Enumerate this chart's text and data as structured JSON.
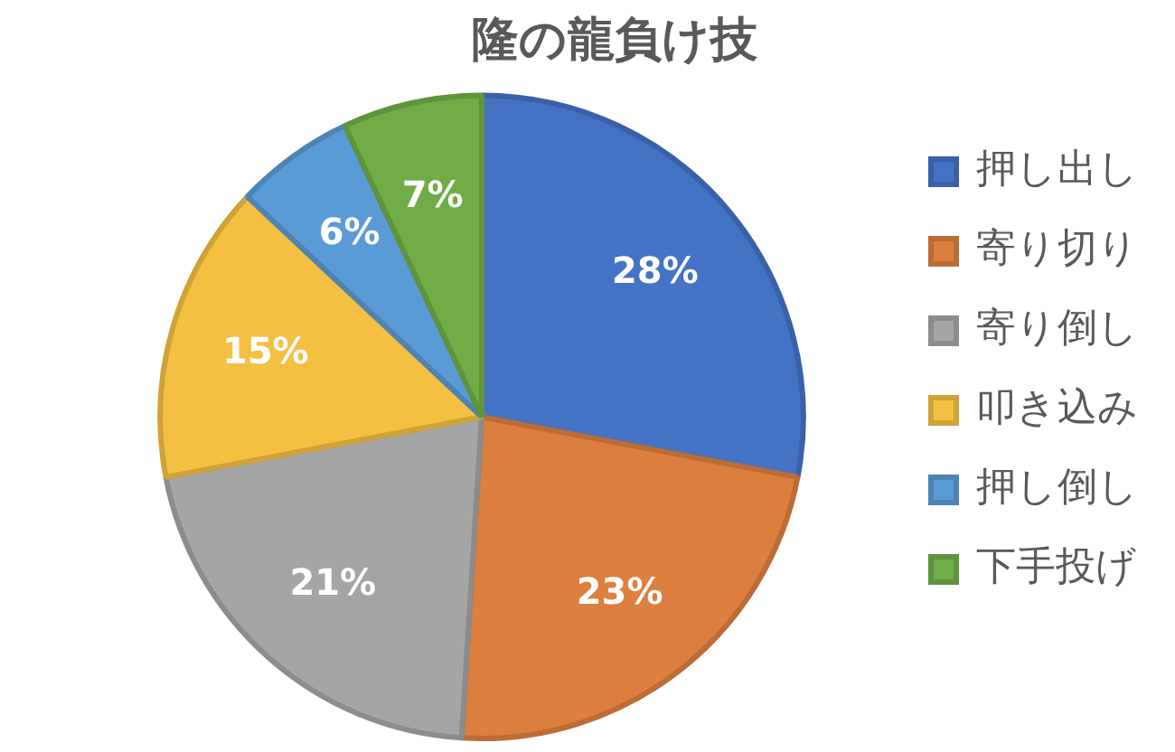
{
  "chart_data": {
    "type": "pie",
    "title": "隆の龍負け技",
    "categories": [
      "押し出し",
      "寄り切り",
      "寄り倒し",
      "叩き込み",
      "押し倒し",
      "下手投げ"
    ],
    "values": [
      28,
      23,
      21,
      15,
      6,
      7
    ],
    "value_labels": [
      "28%",
      "23%",
      "21%",
      "15%",
      "6%",
      "7%"
    ],
    "colors": [
      "#4472c4",
      "#dd7f3f",
      "#a5a5a5",
      "#f4c042",
      "#5b9bd5",
      "#70ad47"
    ],
    "legend": "right"
  }
}
